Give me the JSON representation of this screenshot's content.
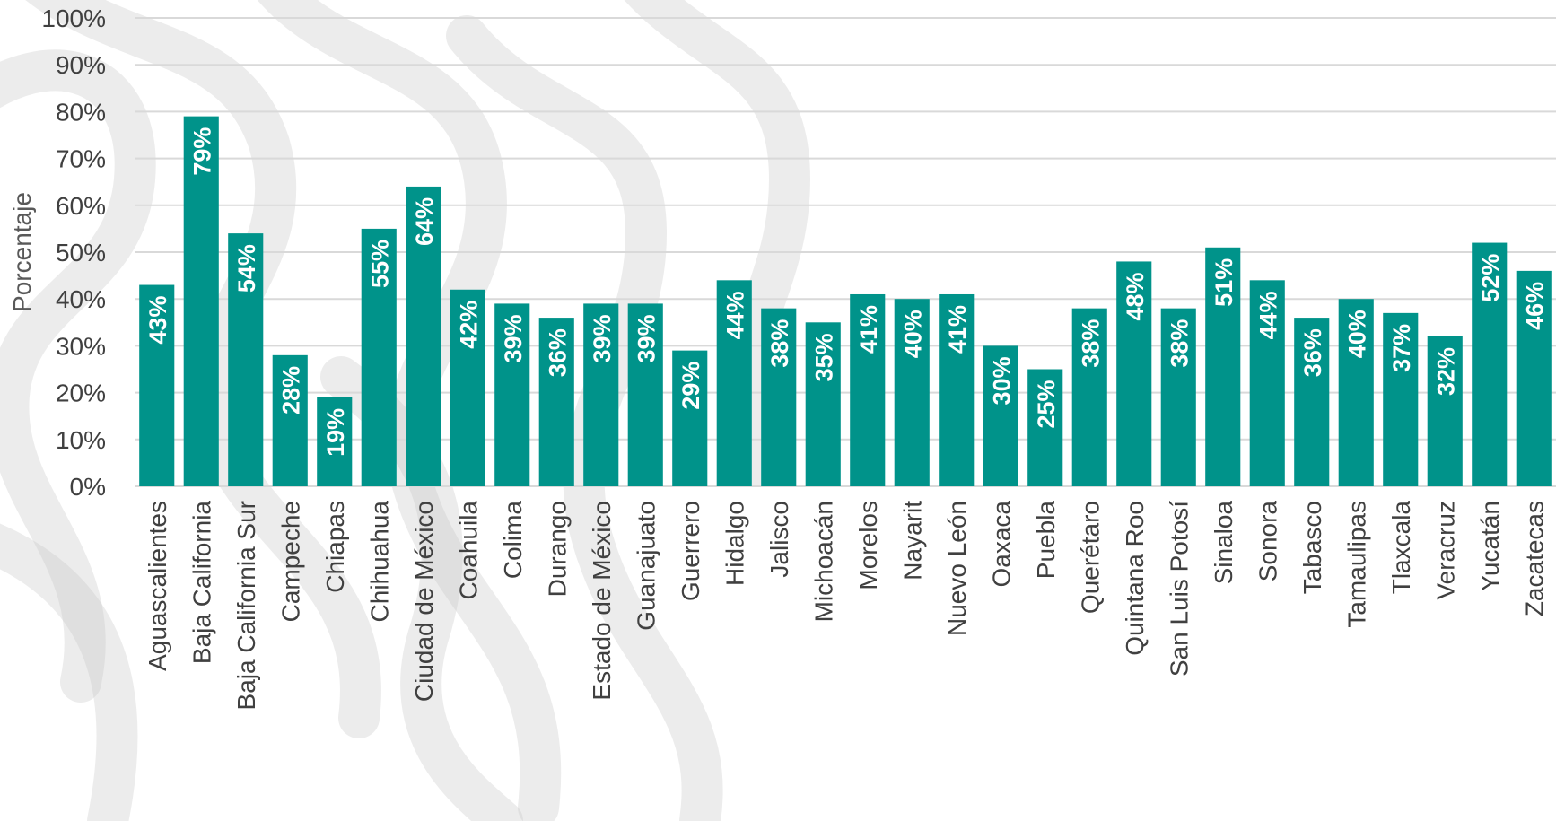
{
  "colors": {
    "bar": "#00938A",
    "grid": "#d9d9d9",
    "text": "#404040",
    "background_pattern": "#c8c8c8"
  },
  "chart_data": {
    "type": "bar",
    "title": "",
    "xlabel": "",
    "ylabel": "Porcentaje",
    "ylim": [
      0,
      100
    ],
    "yticks": [
      "0%",
      "10%",
      "20%",
      "30%",
      "40%",
      "50%",
      "60%",
      "70%",
      "80%",
      "90%",
      "100%"
    ],
    "grid": true,
    "legend": "none",
    "categories": [
      "Aguascalientes",
      "Baja California",
      "Baja California Sur",
      "Campeche",
      "Chiapas",
      "Chihuahua",
      "Ciudad de México",
      "Coahuila",
      "Colima",
      "Durango",
      "Estado de México",
      "Guanajuato",
      "Guerrero",
      "Hidalgo",
      "Jalisco",
      "Michoacán",
      "Morelos",
      "Nayarit",
      "Nuevo León",
      "Oaxaca",
      "Puebla",
      "Querétaro",
      "Quintana Roo",
      "San Luis Potosí",
      "Sinaloa",
      "Sonora",
      "Tabasco",
      "Tamaulipas",
      "Tlaxcala",
      "Veracruz",
      "Yucatán",
      "Zacatecas"
    ],
    "values": [
      43,
      79,
      54,
      28,
      19,
      55,
      64,
      42,
      39,
      36,
      39,
      39,
      29,
      44,
      38,
      35,
      41,
      40,
      41,
      30,
      25,
      38,
      48,
      38,
      51,
      44,
      36,
      40,
      37,
      32,
      52,
      46
    ],
    "labels": [
      "43%",
      "79%",
      "54%",
      "28%",
      "19%",
      "55%",
      "64%",
      "42%",
      "39%",
      "36%",
      "39%",
      "39%",
      "29%",
      "44%",
      "38%",
      "35%",
      "41%",
      "40%",
      "41%",
      "30%",
      "25%",
      "38%",
      "48%",
      "38%",
      "51%",
      "44%",
      "36%",
      "40%",
      "37%",
      "32%",
      "52%",
      "46%"
    ]
  }
}
